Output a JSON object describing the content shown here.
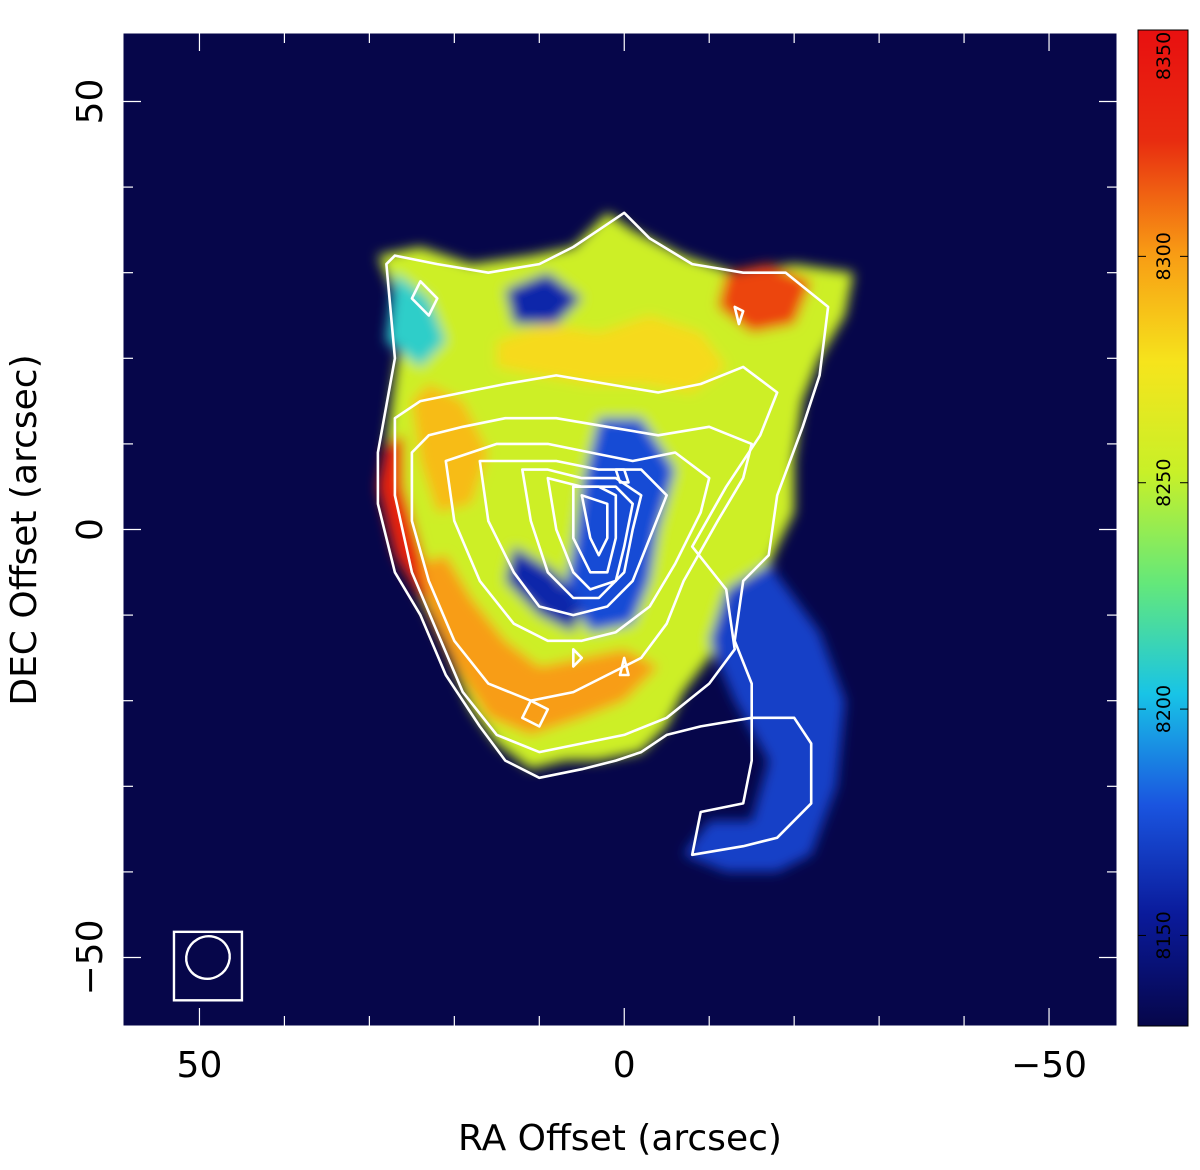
{
  "chart_data": {
    "type": "heatmap",
    "title": "",
    "xlabel": "RA Offset (arcsec)",
    "ylabel": "DEC Offset (arcsec)",
    "xlim": [
      59,
      -58
    ],
    "ylim": [
      -58,
      58
    ],
    "x_ticks": [
      {
        "value": 50,
        "label": "50"
      },
      {
        "value": 0,
        "label": "0"
      },
      {
        "value": -50,
        "label": "−50"
      }
    ],
    "y_ticks": [
      {
        "value": 50,
        "label": "50"
      },
      {
        "value": 0,
        "label": "0"
      },
      {
        "value": -50,
        "label": "−50"
      }
    ],
    "minor_tick_step": 10,
    "colorbar": {
      "range": [
        8130,
        8350
      ],
      "ticks": [
        8150,
        8200,
        8250,
        8300,
        8350
      ],
      "colors": [
        "#06064a",
        "#0a1a9a",
        "#1a55e0",
        "#18c4e6",
        "#64e87a",
        "#c8f028",
        "#f6e41c",
        "#f89a14",
        "#e82c10",
        "#e81010"
      ],
      "placement": "right"
    },
    "background_value": 8130,
    "regions": [
      {
        "name": "main-emission",
        "value": 8255,
        "outline": [
          [
            29,
            32
          ],
          [
            26,
            25
          ],
          [
            27,
            18
          ],
          [
            28,
            10
          ],
          [
            29,
            5
          ],
          [
            27,
            -3
          ],
          [
            24,
            -8
          ],
          [
            21,
            -14
          ],
          [
            18,
            -21
          ],
          [
            15,
            -25
          ],
          [
            11,
            -28
          ],
          [
            7,
            -27
          ],
          [
            3,
            -27
          ],
          [
            -2,
            -26
          ],
          [
            -5,
            -23
          ],
          [
            -7,
            -19
          ],
          [
            -10,
            -15
          ],
          [
            -15,
            -9
          ],
          [
            -18,
            -2
          ],
          [
            -20,
            2
          ],
          [
            -20,
            8
          ],
          [
            -21,
            15
          ],
          [
            -23,
            20
          ],
          [
            -26,
            25
          ],
          [
            -27,
            30
          ],
          [
            -20,
            31
          ],
          [
            -13,
            30
          ],
          [
            -7,
            32
          ],
          [
            -1,
            35
          ],
          [
            2,
            37
          ],
          [
            6,
            33
          ],
          [
            11,
            32
          ],
          [
            18,
            31
          ],
          [
            24,
            33
          ]
        ]
      },
      {
        "name": "east-red-rim",
        "value": 8335,
        "outline": [
          [
            28,
            10
          ],
          [
            29,
            5
          ],
          [
            27,
            -3
          ],
          [
            24,
            -8
          ],
          [
            22,
            -9
          ],
          [
            24,
            -2
          ],
          [
            26,
            5
          ],
          [
            26,
            11
          ]
        ]
      },
      {
        "name": "southeast-orange-arc",
        "value": 8300,
        "outline": [
          [
            24,
            -4
          ],
          [
            23,
            -10
          ],
          [
            20,
            -16
          ],
          [
            16,
            -22
          ],
          [
            11,
            -24
          ],
          [
            5,
            -22
          ],
          [
            0,
            -20
          ],
          [
            -4,
            -16
          ],
          [
            0,
            -14
          ],
          [
            5,
            -15
          ],
          [
            10,
            -16
          ],
          [
            14,
            -13
          ],
          [
            18,
            -8
          ],
          [
            21,
            -3
          ]
        ]
      },
      {
        "name": "east-orange-patch",
        "value": 8290,
        "outline": [
          [
            25,
            15
          ],
          [
            24,
            8
          ],
          [
            22,
            2
          ],
          [
            18,
            3
          ],
          [
            16,
            9
          ],
          [
            19,
            15
          ],
          [
            23,
            17
          ]
        ]
      },
      {
        "name": "north-yellow-band",
        "value": 8280,
        "outline": [
          [
            15,
            22
          ],
          [
            9,
            24
          ],
          [
            3,
            23
          ],
          [
            -3,
            25
          ],
          [
            -9,
            23
          ],
          [
            -12,
            19
          ],
          [
            -8,
            16
          ],
          [
            -2,
            17
          ],
          [
            4,
            17
          ],
          [
            10,
            18
          ],
          [
            15,
            19
          ]
        ]
      },
      {
        "name": "northwest-orange-patch",
        "value": 8320,
        "outline": [
          [
            -12,
            30
          ],
          [
            -17,
            31
          ],
          [
            -22,
            29
          ],
          [
            -20,
            24
          ],
          [
            -15,
            23
          ],
          [
            -11,
            26
          ]
        ]
      },
      {
        "name": "central-blue-core",
        "value": 8175,
        "outline": [
          [
            3,
            13
          ],
          [
            -2,
            13
          ],
          [
            -6,
            7
          ],
          [
            -4,
            0
          ],
          [
            -3,
            -6
          ],
          [
            -1,
            -11
          ],
          [
            4,
            -12
          ],
          [
            7,
            -7
          ],
          [
            6,
            -2
          ],
          [
            5,
            5
          ]
        ]
      },
      {
        "name": "south-central-blue",
        "value": 8160,
        "outline": [
          [
            13,
            -2
          ],
          [
            8,
            -5
          ],
          [
            5,
            -9
          ],
          [
            6,
            -12
          ],
          [
            10,
            -10
          ],
          [
            14,
            -6
          ]
        ]
      },
      {
        "name": "north-blue-hole",
        "value": 8160,
        "outline": [
          [
            14,
            28
          ],
          [
            9,
            30
          ],
          [
            5,
            27
          ],
          [
            8,
            24
          ],
          [
            13,
            24
          ]
        ]
      },
      {
        "name": "west-tail",
        "value": 8170,
        "outline": [
          [
            -17,
            -4
          ],
          [
            -23,
            -12
          ],
          [
            -26,
            -20
          ],
          [
            -25,
            -30
          ],
          [
            -22,
            -38
          ],
          [
            -18,
            -40
          ],
          [
            -12,
            -40
          ],
          [
            -7,
            -38
          ],
          [
            -10,
            -34
          ],
          [
            -15,
            -34
          ],
          [
            -17,
            -27
          ],
          [
            -13,
            -20
          ],
          [
            -10,
            -13
          ],
          [
            -12,
            -7
          ]
        ]
      },
      {
        "name": "northeast-blue-patch",
        "value": 8210,
        "outline": [
          [
            27,
            30
          ],
          [
            23,
            27
          ],
          [
            21,
            22
          ],
          [
            24,
            19
          ],
          [
            28,
            22
          ]
        ]
      }
    ],
    "contours": [
      {
        "level": 1,
        "points": [
          [
            28,
            31
          ],
          [
            27,
            20
          ],
          [
            29,
            9
          ],
          [
            29,
            3
          ],
          [
            27,
            -5
          ],
          [
            24,
            -10
          ],
          [
            21,
            -17
          ],
          [
            17,
            -23
          ],
          [
            14,
            -27
          ],
          [
            10,
            -29
          ],
          [
            5,
            -28
          ],
          [
            1,
            -27
          ],
          [
            -2,
            -26
          ],
          [
            -5,
            -24
          ],
          [
            -9,
            -23
          ],
          [
            -15,
            -22
          ],
          [
            -20,
            -22
          ],
          [
            -22,
            -25
          ],
          [
            -22,
            -32
          ],
          [
            -18,
            -36
          ],
          [
            -14,
            -37
          ],
          [
            -8,
            -38
          ],
          [
            -9,
            -33
          ],
          [
            -14,
            -32
          ],
          [
            -15,
            -27
          ],
          [
            -15,
            -18
          ],
          [
            -13,
            -13
          ],
          [
            -14,
            -6
          ],
          [
            -17,
            -3
          ],
          [
            -18,
            4
          ],
          [
            -21,
            12
          ],
          [
            -23,
            18
          ],
          [
            -24,
            26
          ],
          [
            -19,
            30
          ],
          [
            -14,
            30
          ],
          [
            -8,
            31
          ],
          [
            -3,
            34
          ],
          [
            0,
            37
          ],
          [
            3,
            35
          ],
          [
            6,
            33
          ],
          [
            10,
            31
          ],
          [
            16,
            30
          ],
          [
            22,
            31
          ],
          [
            27,
            32
          ]
        ]
      },
      {
        "level": 2,
        "points": [
          [
            27,
            13
          ],
          [
            27,
            4
          ],
          [
            25,
            -5
          ],
          [
            22,
            -12
          ],
          [
            19,
            -19
          ],
          [
            15,
            -24
          ],
          [
            10,
            -26
          ],
          [
            5,
            -25
          ],
          [
            0,
            -24
          ],
          [
            -5,
            -22
          ],
          [
            -10,
            -18
          ],
          [
            -13,
            -14
          ],
          [
            -12,
            -7
          ],
          [
            -8,
            -2
          ],
          [
            -12,
            5
          ],
          [
            -16,
            11
          ],
          [
            -18,
            16
          ],
          [
            -14,
            19
          ],
          [
            -9,
            17
          ],
          [
            -4,
            16
          ],
          [
            2,
            17
          ],
          [
            8,
            18
          ],
          [
            14,
            17
          ],
          [
            19,
            16
          ],
          [
            24,
            15
          ]
        ]
      },
      {
        "level": 3,
        "points": [
          [
            25,
            9
          ],
          [
            25,
            1
          ],
          [
            23,
            -6
          ],
          [
            20,
            -13
          ],
          [
            16,
            -18
          ],
          [
            11,
            -20
          ],
          [
            6,
            -19
          ],
          [
            2,
            -17
          ],
          [
            -2,
            -15
          ],
          [
            -5,
            -11
          ],
          [
            -7,
            -6
          ],
          [
            -11,
            1
          ],
          [
            -14,
            6
          ],
          [
            -15,
            10
          ],
          [
            -10,
            12
          ],
          [
            -4,
            11
          ],
          [
            2,
            12
          ],
          [
            8,
            13
          ],
          [
            14,
            13
          ],
          [
            19,
            12
          ],
          [
            23,
            11
          ]
        ]
      },
      {
        "level": 4,
        "points": [
          [
            21,
            8
          ],
          [
            20,
            1
          ],
          [
            17,
            -6
          ],
          [
            13,
            -11
          ],
          [
            9,
            -13
          ],
          [
            5,
            -13
          ],
          [
            1,
            -12
          ],
          [
            -3,
            -9
          ],
          [
            -6,
            -4
          ],
          [
            -9,
            2
          ],
          [
            -10,
            6
          ],
          [
            -6,
            9
          ],
          [
            -1,
            8
          ],
          [
            4,
            9
          ],
          [
            9,
            10
          ],
          [
            15,
            10
          ]
        ]
      },
      {
        "level": 5,
        "points": [
          [
            17,
            8
          ],
          [
            16,
            1
          ],
          [
            13,
            -5
          ],
          [
            10,
            -9
          ],
          [
            6,
            -10
          ],
          [
            2,
            -9
          ],
          [
            -1,
            -6
          ],
          [
            -3,
            -1
          ],
          [
            -5,
            4
          ],
          [
            -2,
            7
          ],
          [
            3,
            7
          ],
          [
            8,
            8
          ],
          [
            13,
            8
          ]
        ]
      },
      {
        "level": 6,
        "points": [
          [
            12,
            7
          ],
          [
            11,
            1
          ],
          [
            9,
            -5
          ],
          [
            6,
            -8
          ],
          [
            3,
            -8
          ],
          [
            0,
            -5
          ],
          [
            -1,
            0
          ],
          [
            -2,
            4
          ],
          [
            1,
            6
          ],
          [
            5,
            6
          ],
          [
            9,
            7
          ]
        ]
      },
      {
        "level": 7,
        "points": [
          [
            9,
            6
          ],
          [
            8,
            0
          ],
          [
            6,
            -5
          ],
          [
            4,
            -7
          ],
          [
            1,
            -6
          ],
          [
            0,
            -2
          ],
          [
            -1,
            3
          ],
          [
            1,
            5
          ],
          [
            5,
            5
          ]
        ]
      },
      {
        "level": 8,
        "points": [
          [
            6,
            5
          ],
          [
            6,
            -1
          ],
          [
            4,
            -5
          ],
          [
            2,
            -5
          ],
          [
            1,
            -1
          ],
          [
            1,
            4
          ],
          [
            3,
            5
          ]
        ]
      },
      {
        "level": 9,
        "points": [
          [
            5,
            4
          ],
          [
            4,
            -1
          ],
          [
            3,
            -3
          ],
          [
            2,
            -1
          ],
          [
            2,
            3
          ]
        ]
      },
      {
        "level": 10,
        "points": [
          [
            1,
            7
          ],
          [
            0.5,
            5.5
          ],
          [
            -0.5,
            5.5
          ],
          [
            0,
            7
          ]
        ]
      },
      {
        "level": 11,
        "points": [
          [
            24,
            29
          ],
          [
            22,
            27
          ],
          [
            23,
            25
          ],
          [
            25,
            27
          ]
        ]
      },
      {
        "level": 12,
        "points": [
          [
            11,
            -20
          ],
          [
            9,
            -21
          ],
          [
            10,
            -23
          ],
          [
            12,
            -22
          ]
        ]
      },
      {
        "level": 13,
        "points": [
          [
            -13,
            26
          ],
          [
            -13.5,
            24
          ],
          [
            -14,
            25.5
          ]
        ]
      },
      {
        "level": 14,
        "points": [
          [
            6,
            -14
          ],
          [
            5,
            -15
          ],
          [
            6,
            -16
          ]
        ]
      },
      {
        "level": 15,
        "points": [
          [
            0,
            -15
          ],
          [
            -0.5,
            -17
          ],
          [
            0.5,
            -17
          ]
        ]
      }
    ],
    "beam": {
      "center": [
        49,
        -50
      ],
      "major": 5.5,
      "minor": 4.5,
      "angle_deg": -30,
      "box": [
        [
          53,
          -47
        ],
        [
          45,
          -55
        ]
      ]
    }
  }
}
